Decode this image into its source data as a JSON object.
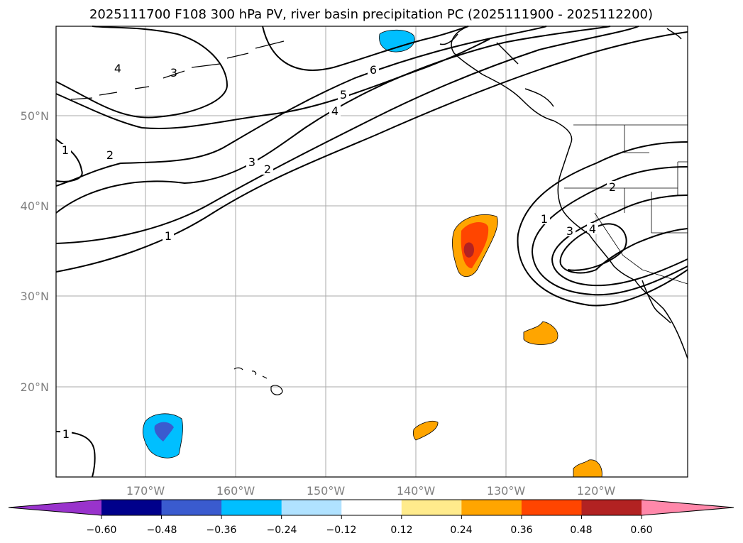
{
  "title": "2025111700 F108 300 hPa PV, river basin precipitation PC (2025111900 - 2025112200)",
  "lat_labels": [
    "50°N",
    "40°N",
    "30°N",
    "20°N"
  ],
  "lon_labels": [
    "170°W",
    "160°W",
    "150°W",
    "140°W",
    "130°W",
    "120°W"
  ],
  "colorbar": {
    "ticks": [
      "−0.60",
      "−0.48",
      "−0.36",
      "−0.24",
      "−0.12",
      "0.12",
      "0.24",
      "0.36",
      "0.48",
      "0.60"
    ],
    "colors": [
      "#9933cc",
      "#00008b",
      "#3a5bcf",
      "#00bfff",
      "#b0e2ff",
      "#ffffff",
      "#ffeb8c",
      "#ffa500",
      "#ff4500",
      "#b22222",
      "#ff88aa"
    ]
  },
  "contour_labels": [
    "4",
    "3",
    "6",
    "5",
    "4",
    "3",
    "2",
    "1",
    "2",
    "1",
    "1",
    "2",
    "3",
    "4",
    "1"
  ]
}
